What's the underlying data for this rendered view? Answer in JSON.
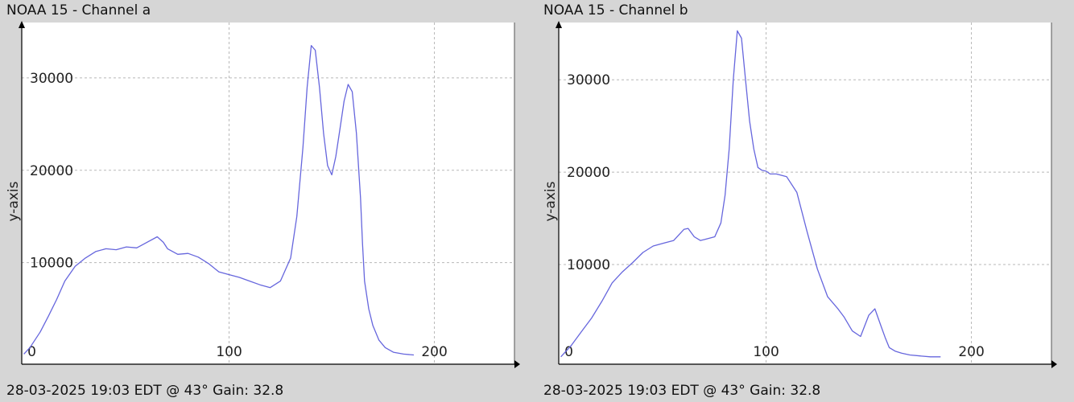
{
  "chart_data": [
    {
      "type": "line",
      "title": "NOAA 15 - Channel a",
      "footer": "28-03-2025 19:03 EDT @ 43° Gain: 32.8",
      "xlabel": "",
      "ylabel": "y-axis",
      "xlim": [
        -1,
        239
      ],
      "ylim": [
        -1000,
        36000
      ],
      "x_ticks": [
        0,
        100,
        200
      ],
      "y_ticks": [
        10000,
        20000,
        30000
      ],
      "grid": true,
      "line_color": "#6666dd",
      "series": [
        {
          "x": [
            0,
            3,
            8,
            12,
            16,
            20,
            25,
            30,
            35,
            40,
            45,
            50,
            55,
            60,
            65,
            68,
            70,
            75,
            80,
            85,
            90,
            95,
            100,
            105,
            110,
            115,
            120,
            125,
            130,
            133,
            136,
            138,
            140,
            142,
            144,
            146,
            148,
            150,
            152,
            154,
            156,
            158,
            160,
            162,
            164,
            165,
            166,
            168,
            170,
            173,
            176,
            180,
            185,
            190
          ],
          "y": [
            100,
            800,
            2500,
            4200,
            6000,
            8000,
            9600,
            10500,
            11200,
            11500,
            11400,
            11700,
            11600,
            12200,
            12800,
            12200,
            11500,
            10900,
            11000,
            10600,
            9900,
            9000,
            8700,
            8400,
            8000,
            7600,
            7300,
            8000,
            10500,
            15000,
            22500,
            29000,
            33500,
            33000,
            29000,
            24000,
            20500,
            19500,
            21500,
            24500,
            27500,
            29300,
            28500,
            24000,
            17000,
            12000,
            8000,
            5000,
            3200,
            1600,
            800,
            300,
            100,
            0
          ]
        }
      ]
    },
    {
      "type": "line",
      "title": "NOAA 15 - Channel b",
      "footer": "28-03-2025 19:03 EDT @ 43° Gain: 32.8",
      "xlabel": "",
      "ylabel": "y-axis",
      "xlim": [
        -1,
        239
      ],
      "ylim": [
        -800,
        36200
      ],
      "x_ticks": [
        0,
        100,
        200
      ],
      "y_ticks": [
        10000,
        20000,
        30000
      ],
      "grid": true,
      "line_color": "#6666dd",
      "series": [
        {
          "x": [
            0,
            5,
            10,
            15,
            20,
            25,
            30,
            35,
            40,
            45,
            50,
            55,
            60,
            62,
            65,
            68,
            70,
            75,
            78,
            80,
            82,
            84,
            86,
            88,
            90,
            92,
            94,
            96,
            98,
            100,
            102,
            105,
            110,
            115,
            120,
            125,
            130,
            135,
            138,
            142,
            146,
            150,
            153,
            156,
            158,
            160,
            163,
            166,
            170,
            175,
            180,
            185
          ],
          "y": [
            0,
            1200,
            2700,
            4200,
            6000,
            8000,
            9200,
            10200,
            11300,
            12000,
            12300,
            12600,
            13800,
            13900,
            13000,
            12600,
            12700,
            13000,
            14500,
            17500,
            22500,
            30000,
            35300,
            34500,
            30000,
            25500,
            22500,
            20500,
            20200,
            20100,
            19800,
            19800,
            19500,
            17800,
            13500,
            9500,
            6500,
            5200,
            4300,
            2800,
            2200,
            4500,
            5200,
            3300,
            2100,
            1000,
            600,
            400,
            200,
            100,
            0,
            0
          ]
        }
      ]
    }
  ]
}
